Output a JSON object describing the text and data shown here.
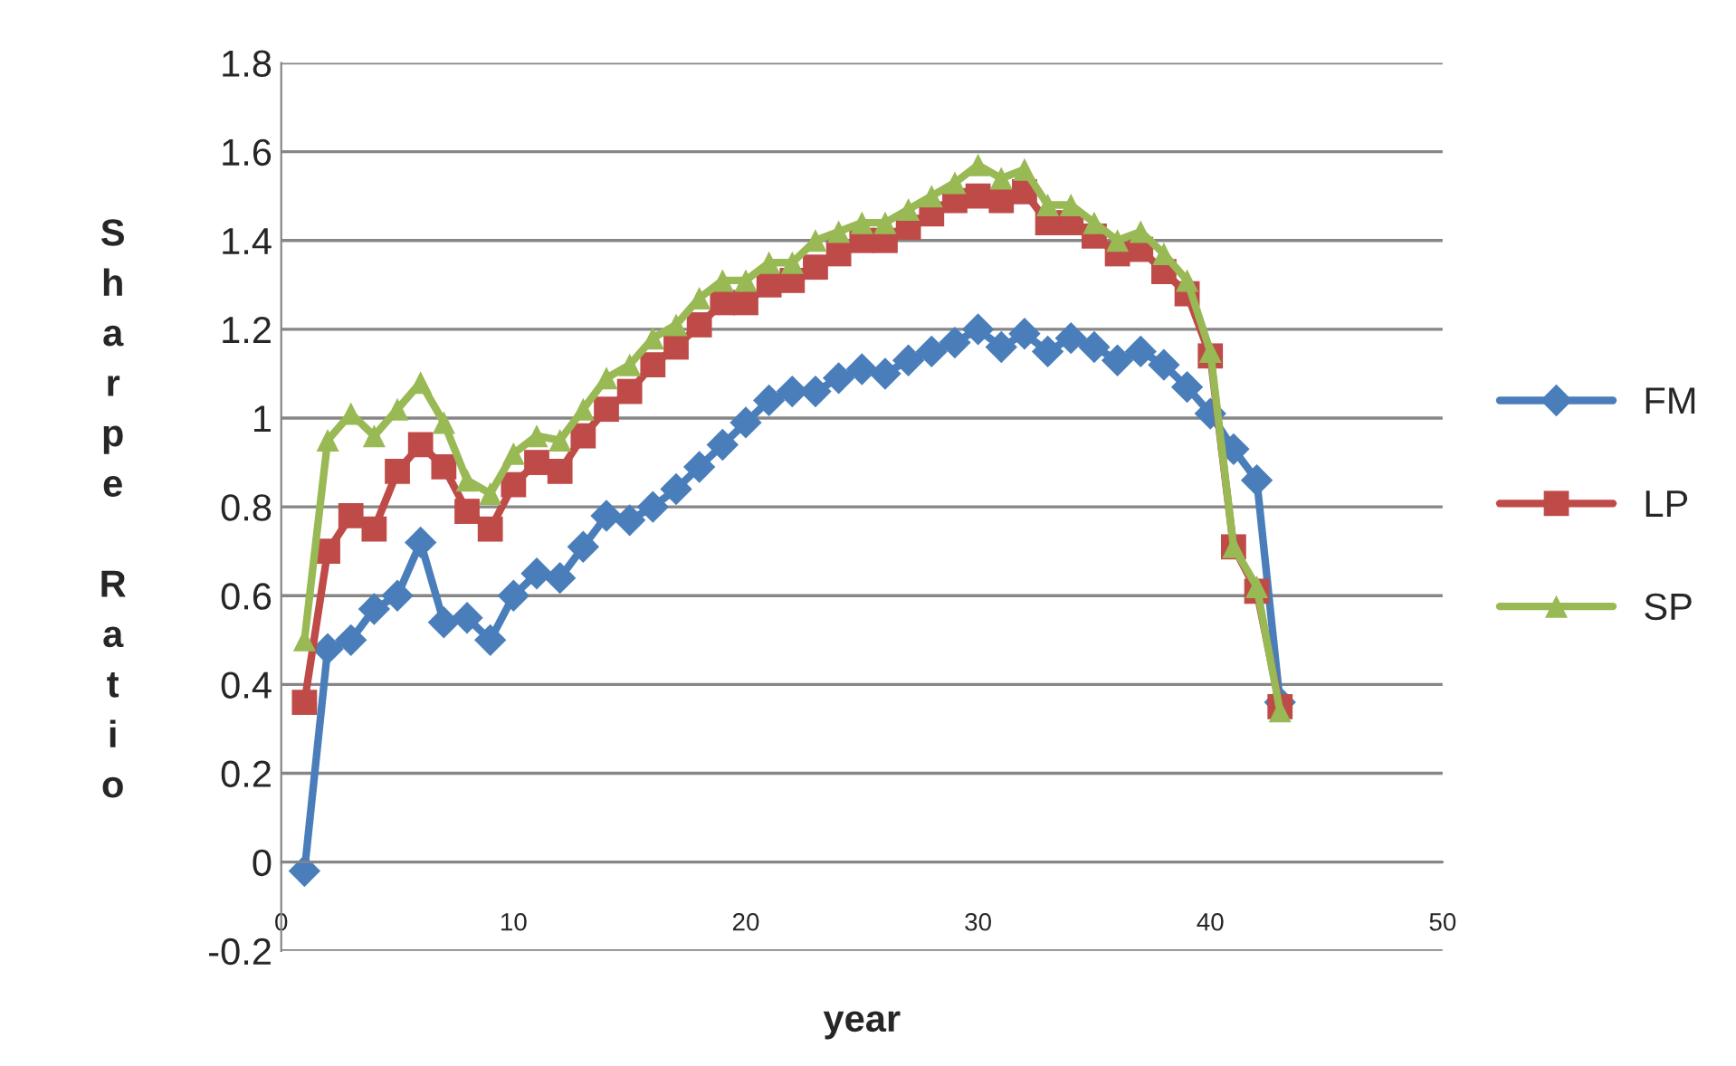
{
  "chart_data": {
    "type": "line",
    "xlabel": "year",
    "ylabel": "Sharpe Ratio",
    "x": [
      1,
      2,
      3,
      4,
      5,
      6,
      7,
      8,
      9,
      10,
      11,
      12,
      13,
      14,
      15,
      16,
      17,
      18,
      19,
      20,
      21,
      22,
      23,
      24,
      25,
      26,
      27,
      28,
      29,
      30,
      31,
      32,
      33,
      34,
      35,
      36,
      37,
      38,
      39,
      40,
      41,
      42,
      43
    ],
    "series": [
      {
        "name": "FM",
        "color": "#4a7ebb",
        "marker": "diamond",
        "values": [
          -0.02,
          0.48,
          0.5,
          0.57,
          0.6,
          0.72,
          0.54,
          0.55,
          0.5,
          0.6,
          0.65,
          0.64,
          0.71,
          0.78,
          0.77,
          0.8,
          0.84,
          0.89,
          0.94,
          0.99,
          1.04,
          1.06,
          1.06,
          1.09,
          1.11,
          1.1,
          1.13,
          1.15,
          1.17,
          1.2,
          1.16,
          1.19,
          1.15,
          1.18,
          1.16,
          1.13,
          1.15,
          1.12,
          1.07,
          1.01,
          0.93,
          0.86,
          0.36
        ]
      },
      {
        "name": "LP",
        "color": "#be4b48",
        "marker": "square",
        "values": [
          0.36,
          0.7,
          0.78,
          0.75,
          0.88,
          0.94,
          0.89,
          0.79,
          0.75,
          0.85,
          0.9,
          0.88,
          0.96,
          1.02,
          1.06,
          1.12,
          1.16,
          1.21,
          1.26,
          1.26,
          1.3,
          1.31,
          1.34,
          1.37,
          1.4,
          1.4,
          1.43,
          1.46,
          1.49,
          1.5,
          1.49,
          1.51,
          1.44,
          1.44,
          1.41,
          1.37,
          1.38,
          1.33,
          1.28,
          1.14,
          0.71,
          0.61,
          0.35
        ]
      },
      {
        "name": "SP",
        "color": "#98b954",
        "marker": "triangle",
        "values": [
          0.5,
          0.95,
          1.01,
          0.96,
          1.02,
          1.08,
          0.99,
          0.86,
          0.83,
          0.92,
          0.96,
          0.95,
          1.02,
          1.09,
          1.12,
          1.18,
          1.21,
          1.27,
          1.31,
          1.31,
          1.35,
          1.35,
          1.4,
          1.42,
          1.44,
          1.44,
          1.47,
          1.5,
          1.53,
          1.57,
          1.54,
          1.56,
          1.48,
          1.48,
          1.44,
          1.4,
          1.42,
          1.37,
          1.31,
          1.15,
          0.71,
          0.62,
          0.34
        ]
      }
    ],
    "xlim": [
      0,
      50
    ],
    "xticks": [
      0,
      10,
      20,
      30,
      40,
      50
    ],
    "ylim": [
      -0.2,
      1.8
    ],
    "yticks": [
      -0.2,
      0,
      0.2,
      0.4,
      0.6,
      0.8,
      1,
      1.2,
      1.4,
      1.6,
      1.8
    ],
    "grid": "y",
    "legend": "right",
    "line_style": "solid"
  }
}
